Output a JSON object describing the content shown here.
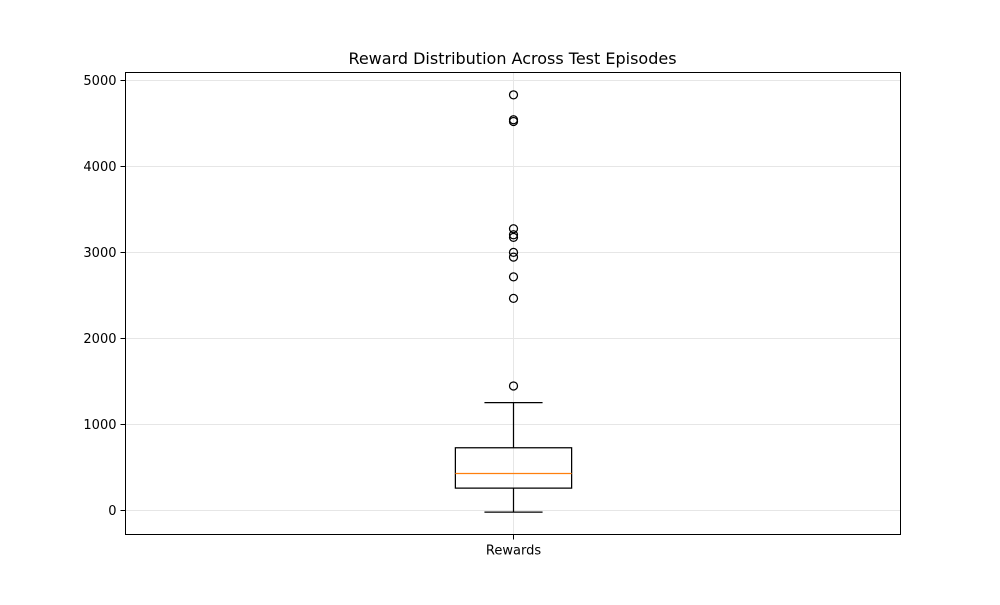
{
  "chart_data": {
    "type": "box",
    "title": "Reward Distribution Across Test Episodes",
    "xlabel": "",
    "ylabel": "",
    "categories": [
      "Rewards"
    ],
    "ylim": [
      -290,
      5090
    ],
    "yticks": [
      0,
      1000,
      2000,
      3000,
      4000,
      5000
    ],
    "grid": true,
    "boxes": [
      {
        "category": "Rewards",
        "whisker_low": -30,
        "q1": 250,
        "median": 420,
        "q3": 720,
        "whisker_high": 1245,
        "outliers": [
          1440,
          2460,
          2710,
          2940,
          2995,
          3170,
          3200,
          3270,
          4520,
          4540,
          4830
        ]
      }
    ],
    "colors": {
      "box": "#000000",
      "median": "#ff7f0e",
      "grid": "#e6e6e6",
      "axes": "#000000"
    }
  }
}
